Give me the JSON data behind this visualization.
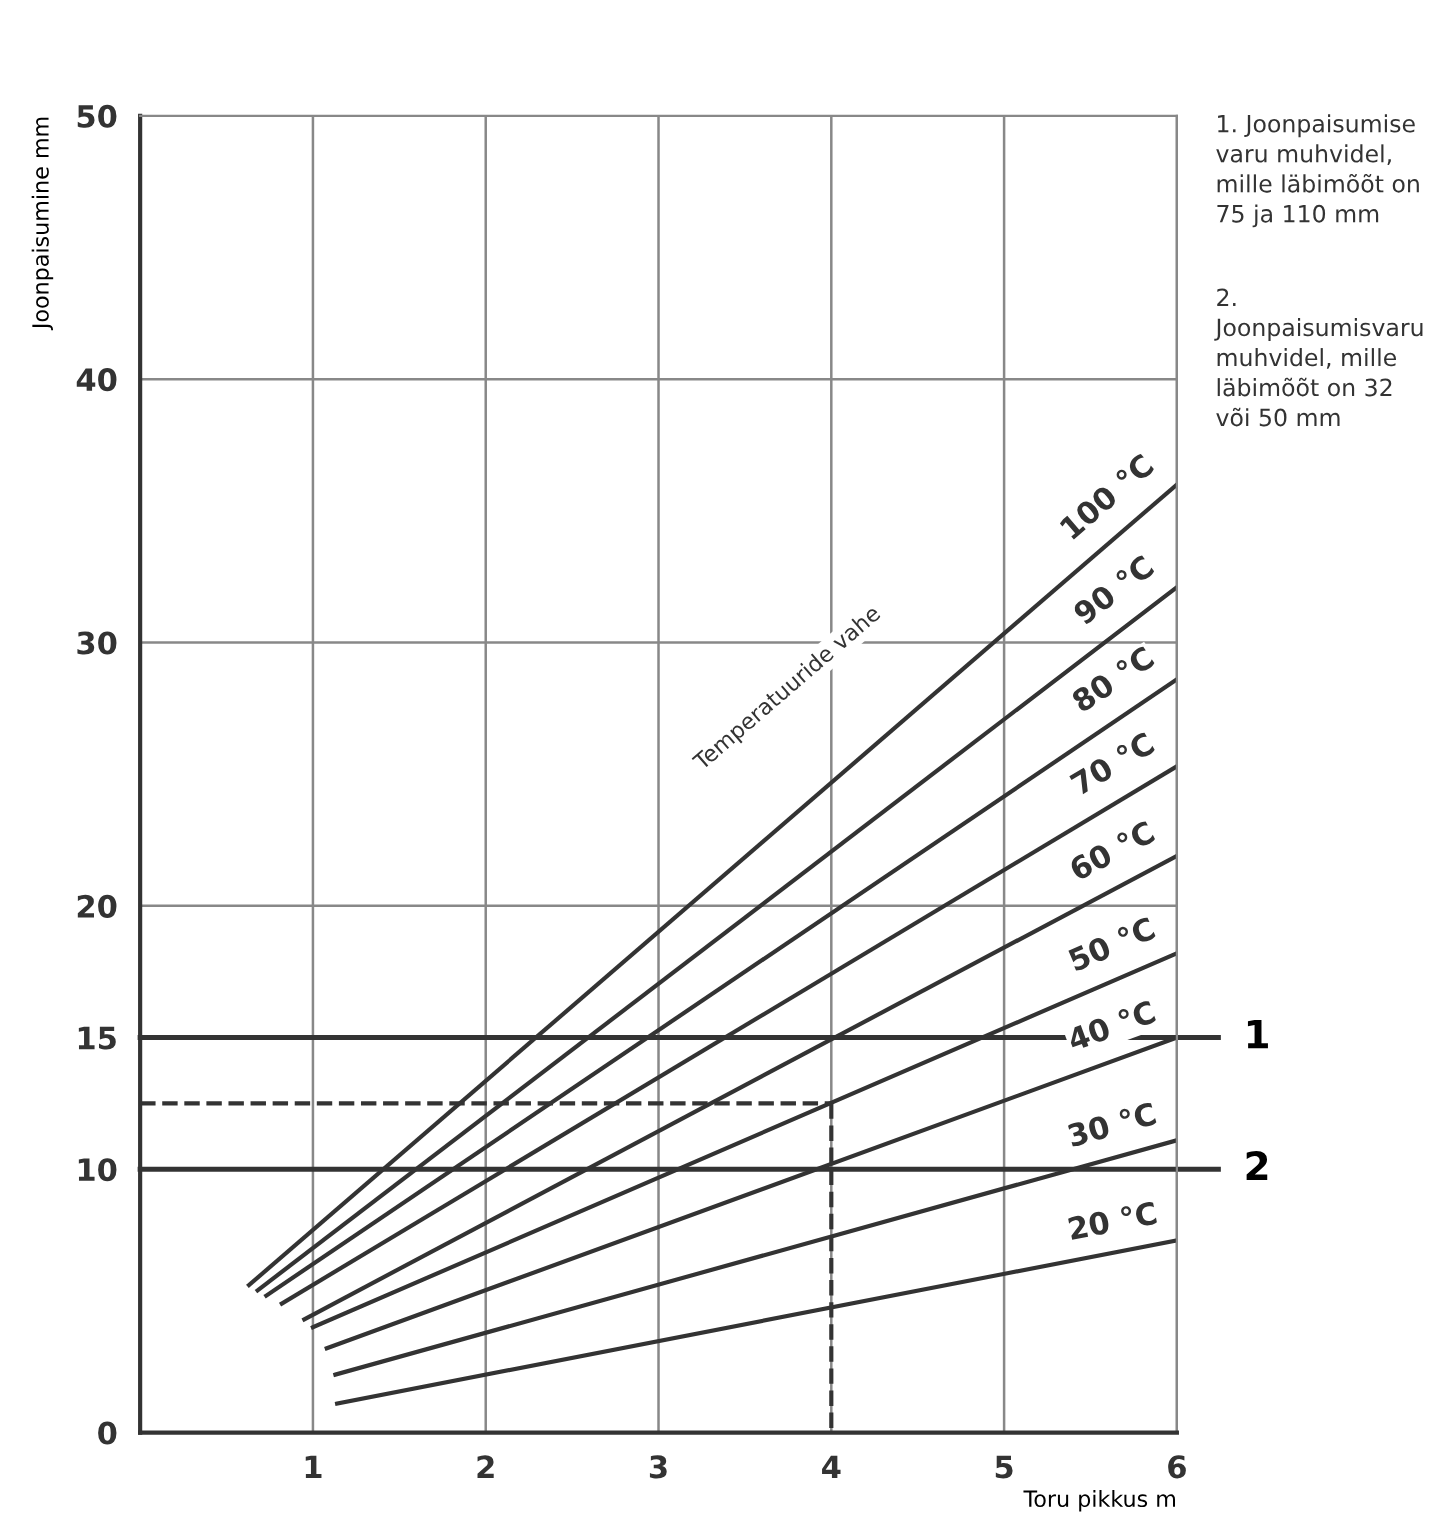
{
  "chart_data": {
    "type": "line",
    "ylabel": "Joonpaisumine mm",
    "xlabel": "Toru pikkus m",
    "xlim": [
      0,
      6
    ],
    "xticks": [
      1,
      2,
      3,
      4,
      5,
      6
    ],
    "ylim": [
      0,
      50
    ],
    "yticks": [
      0,
      10,
      15,
      20,
      30,
      40,
      50
    ],
    "grid": true,
    "legend": false,
    "marker": "none",
    "line_style": "solid",
    "series": [
      {
        "name": "100 °C",
        "color": "#333333",
        "x": [
          0.63,
          6
        ],
        "values": [
          5.6,
          36
        ]
      },
      {
        "name": "90 °C",
        "color": "#333333",
        "x": [
          0.68,
          6
        ],
        "values": [
          5.4,
          32.1
        ]
      },
      {
        "name": "80 °C",
        "color": "#333333",
        "x": [
          0.73,
          6
        ],
        "values": [
          5.2,
          28.6
        ]
      },
      {
        "name": "70 °C",
        "color": "#333333",
        "x": [
          0.82,
          6
        ],
        "values": [
          4.9,
          25.3
        ]
      },
      {
        "name": "60 °C",
        "color": "#333333",
        "x": [
          0.95,
          6
        ],
        "values": [
          4.3,
          21.9
        ]
      },
      {
        "name": "50 °C",
        "color": "#333333",
        "x": [
          1.0,
          6
        ],
        "values": [
          4.0,
          18.2
        ]
      },
      {
        "name": "40 °C",
        "color": "#333333",
        "x": [
          1.08,
          6
        ],
        "values": [
          3.2,
          15
        ]
      },
      {
        "name": "30 °C",
        "color": "#333333",
        "x": [
          1.13,
          6
        ],
        "values": [
          2.2,
          11.1
        ]
      },
      {
        "name": "20 °C",
        "color": "#333333",
        "x": [
          1.14,
          6
        ],
        "values": [
          1.1,
          7.3
        ]
      },
      {
        "color": "#333333",
        "line_style": "dashed",
        "x": [
          0,
          4
        ],
        "values": [
          12.5,
          12.5
        ]
      },
      {
        "color": "#333333",
        "line_style": "dashed",
        "x": [
          4,
          4
        ],
        "values": [
          12.5,
          0
        ]
      }
    ],
    "ref_lines": [
      {
        "axis": "y",
        "value": 15,
        "color": "#333333"
      },
      {
        "axis": "y",
        "value": 10,
        "color": "#333333"
      }
    ],
    "annotations": [
      {
        "text": "1",
        "x": 6,
        "y": 15
      },
      {
        "text": "2",
        "x": 6,
        "y": 10
      },
      "Temperatuuride vahe",
      "1. Joonpaisumise varu muhvidel, mille läbimõõt on 75 ja 110 mm",
      "2. Joonpaisumisvaru muhvidel, mille läbimõõt on 32 või 50 mm"
    ]
  }
}
